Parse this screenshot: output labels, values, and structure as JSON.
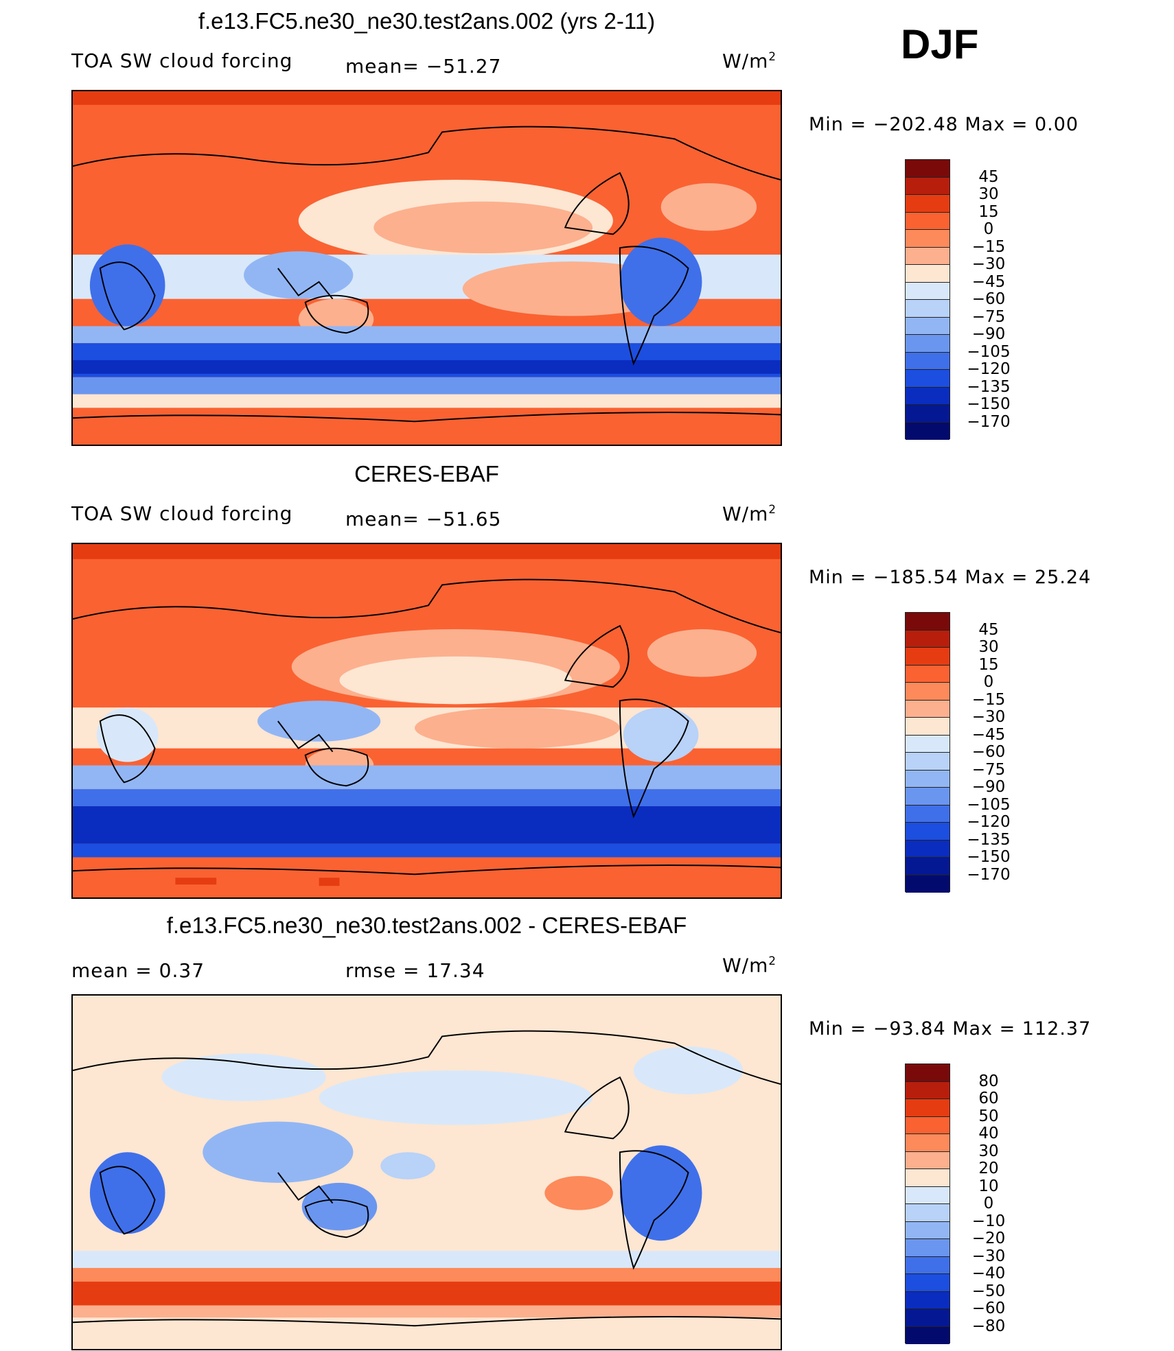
{
  "season": "DJF",
  "units_base": "W/m",
  "units_sup": "2",
  "panels": [
    {
      "title": "f.e13.FC5.ne30_ne30.test2ans.002 (yrs 2-11)",
      "left_label": "TOA SW cloud forcing",
      "stat_label": "mean=  −51.27",
      "min_max": "Min  =  −202.48  Max  =      0.00",
      "colorbar": {
        "colors": [
          "#7a0a0a",
          "#b81e0c",
          "#e63c12",
          "#fa6232",
          "#fd8a5a",
          "#fcb08e",
          "#fde6d2",
          "#d8e8fa",
          "#b8d2f8",
          "#92b6f4",
          "#6a96f0",
          "#3f70ea",
          "#1c4ee0",
          "#0a2dc0",
          "#051894",
          "#030a6e"
        ],
        "labels": [
          "45",
          "30",
          "15",
          "0",
          "−15",
          "−30",
          "−45",
          "−60",
          "−75",
          "−90",
          "−105",
          "−120",
          "−135",
          "−150",
          "−170"
        ]
      }
    },
    {
      "title": "CERES-EBAF",
      "left_label": "TOA SW cloud forcing",
      "stat_label": "mean=  −51.65",
      "min_max": "Min  =  −185.54  Max  =    25.24",
      "colorbar": {
        "colors": [
          "#7a0a0a",
          "#b81e0c",
          "#e63c12",
          "#fa6232",
          "#fd8a5a",
          "#fcb08e",
          "#fde6d2",
          "#d8e8fa",
          "#b8d2f8",
          "#92b6f4",
          "#6a96f0",
          "#3f70ea",
          "#1c4ee0",
          "#0a2dc0",
          "#051894",
          "#030a6e"
        ],
        "labels": [
          "45",
          "30",
          "15",
          "0",
          "−15",
          "−30",
          "−45",
          "−60",
          "−75",
          "−90",
          "−105",
          "−120",
          "−135",
          "−150",
          "−170"
        ]
      }
    },
    {
      "title": "f.e13.FC5.ne30_ne30.test2ans.002 - CERES-EBAF",
      "left_label": "mean =     0.37",
      "stat_label": "rmse  =    17.34",
      "min_max": "Min  =  −93.84  Max  =  112.37",
      "colorbar": {
        "colors": [
          "#7a0a0a",
          "#b81e0c",
          "#e63c12",
          "#fa6232",
          "#fd8a5a",
          "#fcb08e",
          "#fde6d2",
          "#d8e8fa",
          "#b8d2f8",
          "#92b6f4",
          "#6a96f0",
          "#3f70ea",
          "#1c4ee0",
          "#0a2dc0",
          "#051894",
          "#030a6e"
        ],
        "labels": [
          "80",
          "60",
          "50",
          "40",
          "30",
          "20",
          "10",
          "0",
          "−10",
          "−20",
          "−30",
          "−40",
          "−50",
          "−60",
          "−80"
        ]
      }
    }
  ],
  "chart_data": [
    {
      "type": "heatmap",
      "title": "f.e13.FC5.ne30_ne30.test2ans.002 (yrs 2-11)",
      "variable": "TOA SW cloud forcing",
      "units": "W/m2",
      "season": "DJF",
      "mean": -51.27,
      "min": -202.48,
      "max": 0.0,
      "levels": [
        -170,
        -150,
        -135,
        -120,
        -105,
        -90,
        -75,
        -60,
        -45,
        -30,
        -15,
        0,
        15,
        30,
        45
      ]
    },
    {
      "type": "heatmap",
      "title": "CERES-EBAF",
      "variable": "TOA SW cloud forcing",
      "units": "W/m2",
      "season": "DJF",
      "mean": -51.65,
      "min": -185.54,
      "max": 25.24,
      "levels": [
        -170,
        -150,
        -135,
        -120,
        -105,
        -90,
        -75,
        -60,
        -45,
        -30,
        -15,
        0,
        15,
        30,
        45
      ]
    },
    {
      "type": "heatmap",
      "title": "f.e13.FC5.ne30_ne30.test2ans.002 - CERES-EBAF",
      "units": "W/m2",
      "season": "DJF",
      "mean": 0.37,
      "rmse": 17.34,
      "min": -93.84,
      "max": 112.37,
      "levels": [
        -80,
        -60,
        -50,
        -40,
        -30,
        -20,
        -10,
        0,
        10,
        20,
        30,
        40,
        50,
        60,
        80
      ]
    }
  ]
}
